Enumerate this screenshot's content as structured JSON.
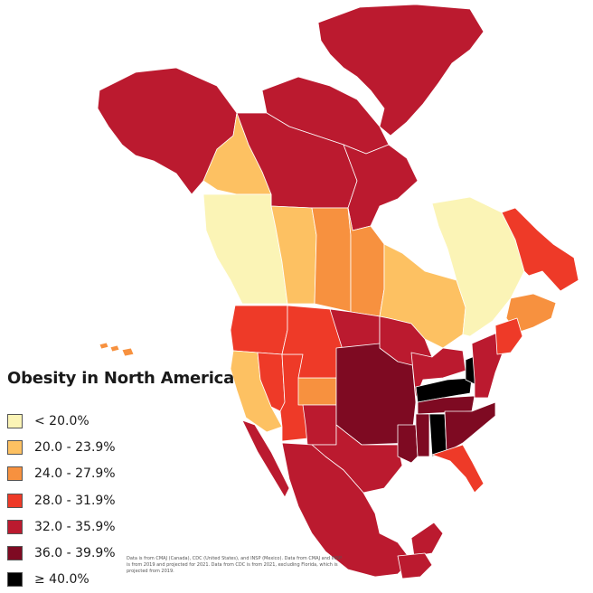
{
  "title": "Obesity in North America",
  "legend": [
    {
      "label": "< 20.0%",
      "color": "#fbf4b6"
    },
    {
      "label": "20.0 - 23.9%",
      "color": "#fdc162"
    },
    {
      "label": "24.0 - 27.9%",
      "color": "#f7913f"
    },
    {
      "label": "28.0 - 31.9%",
      "color": "#ee3a28"
    },
    {
      "label": "32.0 - 35.9%",
      "color": "#bb1a2f"
    },
    {
      "label": "36.0 - 39.9%",
      "color": "#7e0a22"
    },
    {
      "label": "≥ 40.0%",
      "color": "#000000"
    }
  ],
  "source_note": "Data is from CMAJ (Canada), CDC (United States), and INSP (Mexico). Data from CMAJ and INSP is from 2019 and projected for 2021. Data from CDC is from 2021, excluding Florida, which is projected from 2019.",
  "regions": [
    {
      "name": "greenland",
      "class": 4
    },
    {
      "name": "arctic-archipelago",
      "class": 4
    },
    {
      "name": "alaska",
      "class": 4
    },
    {
      "name": "yukon",
      "class": 1
    },
    {
      "name": "northwest-territories",
      "class": 4
    },
    {
      "name": "nunavut",
      "class": 4
    },
    {
      "name": "british-columbia",
      "class": 0
    },
    {
      "name": "alberta",
      "class": 1
    },
    {
      "name": "saskatchewan",
      "class": 2
    },
    {
      "name": "manitoba",
      "class": 2
    },
    {
      "name": "ontario",
      "class": 1
    },
    {
      "name": "quebec",
      "class": 0
    },
    {
      "name": "newfoundland-labrador",
      "class": 3
    },
    {
      "name": "maritimes",
      "class": 2
    },
    {
      "name": "hawaii",
      "class": 2
    },
    {
      "name": "pacific-northwest",
      "class": 3
    },
    {
      "name": "california",
      "class": 1
    },
    {
      "name": "nevada",
      "class": 3
    },
    {
      "name": "utah-arizona",
      "class": 3
    },
    {
      "name": "colorado",
      "class": 2
    },
    {
      "name": "new-mexico",
      "class": 4
    },
    {
      "name": "northern-rockies",
      "class": 3
    },
    {
      "name": "great-plains",
      "class": 4
    },
    {
      "name": "central-plains",
      "class": 5
    },
    {
      "name": "texas",
      "class": 4
    },
    {
      "name": "louisiana",
      "class": 5
    },
    {
      "name": "upper-midwest",
      "class": 4
    },
    {
      "name": "great-lakes-states",
      "class": 4
    },
    {
      "name": "kentucky",
      "class": 6
    },
    {
      "name": "west-virginia",
      "class": 6
    },
    {
      "name": "tennessee",
      "class": 5
    },
    {
      "name": "mississippi",
      "class": 5
    },
    {
      "name": "alabama",
      "class": 6
    },
    {
      "name": "southeast",
      "class": 5
    },
    {
      "name": "florida",
      "class": 3
    },
    {
      "name": "mid-atlantic",
      "class": 4
    },
    {
      "name": "new-england",
      "class": 3
    },
    {
      "name": "mexico",
      "class": 4
    },
    {
      "name": "baja-california",
      "class": 4
    },
    {
      "name": "yucatan",
      "class": 4
    },
    {
      "name": "central-america",
      "class": 4
    }
  ]
}
